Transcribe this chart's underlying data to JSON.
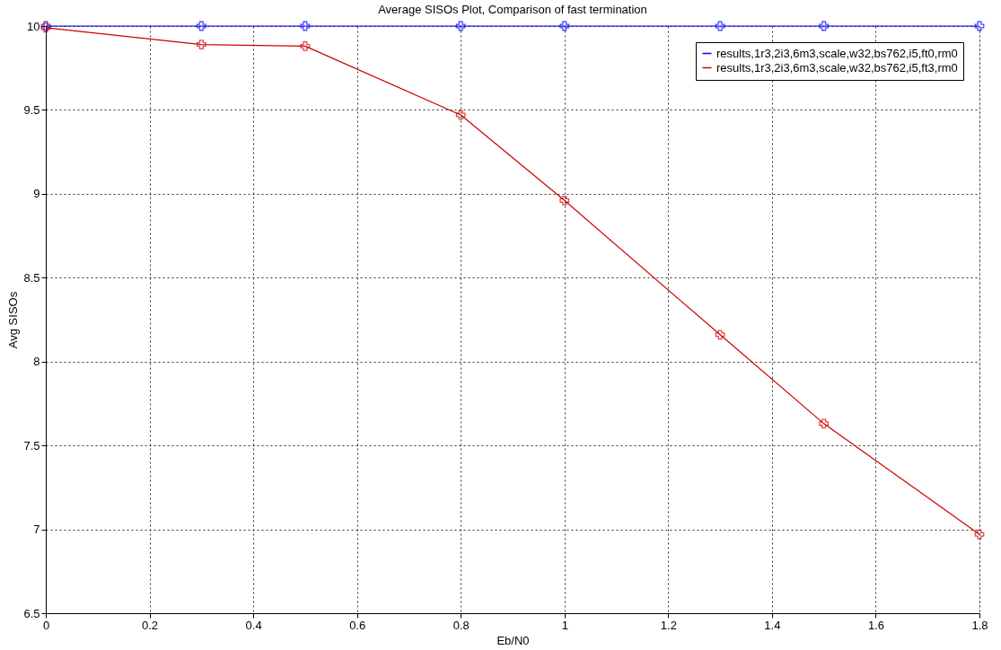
{
  "chart_data": {
    "type": "line",
    "title": "Average SISOs Plot, Comparison of fast termination",
    "xlabel": "Eb/N0",
    "ylabel": "Avg SISOs",
    "x": [
      0,
      0.3,
      0.5,
      0.8,
      1,
      1.3,
      1.5,
      1.8
    ],
    "series": [
      {
        "name": "results,1r3,2i3,6m3,scale,w32,bs762,i5,ft0,rm0",
        "color": "#0000ff",
        "values": [
          10,
          10,
          10,
          10,
          10,
          10,
          10,
          10
        ]
      },
      {
        "name": "results,1r3,2i3,6m3,scale,w32,bs762,i5,ft3,rm0",
        "color": "#cc0000",
        "values": [
          9.99,
          9.89,
          9.88,
          9.47,
          8.96,
          8.16,
          7.63,
          6.97
        ]
      }
    ],
    "xlim": [
      0,
      1.8
    ],
    "xticks": [
      0,
      0.2,
      0.4,
      0.6,
      0.8,
      1,
      1.2,
      1.4,
      1.6,
      1.8
    ],
    "ylim": [
      6.5,
      10
    ],
    "yticks": [
      6.5,
      7,
      7.5,
      8,
      8.5,
      9,
      9.5,
      10
    ],
    "grid": true,
    "legend": "top right",
    "marker": "cross",
    "line_style": "solid"
  }
}
